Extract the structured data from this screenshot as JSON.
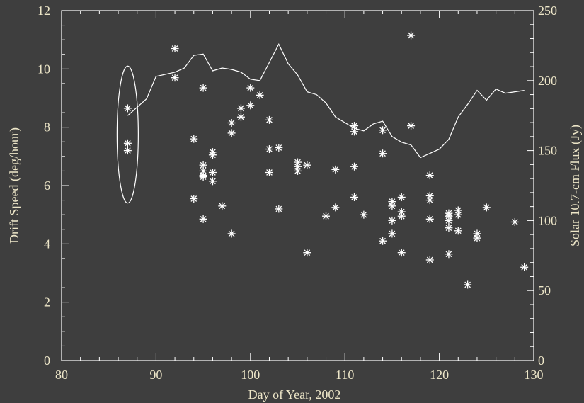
{
  "colors": {
    "background": "#3e3e3e",
    "axes": "#ffffff",
    "text": "#ede6c8",
    "marks": "#ffffff"
  },
  "chart_data": {
    "type": "scatter",
    "xlabel": "Day of Year, 2002",
    "ylabel": "Drift Speed (deg/hour)",
    "y2label": "Solar 10.7-cm Flux (Jy)",
    "xlim": [
      80,
      130
    ],
    "ylim": [
      0,
      12
    ],
    "y2lim": [
      0,
      250
    ],
    "xticks": [
      "80",
      "90",
      "100",
      "110",
      "120",
      "130"
    ],
    "yticks": [
      "0",
      "2",
      "4",
      "6",
      "8",
      "10",
      "12"
    ],
    "y2ticks": [
      "0",
      "50",
      "100",
      "150",
      "200",
      "250"
    ],
    "grid": false,
    "legend": "none",
    "annotation": "ellipse around day 87 points",
    "series": [
      {
        "axis": "left",
        "marker": "asterisk",
        "x": [
          87,
          87,
          87,
          92,
          92,
          94,
          94,
          95,
          95,
          95,
          95,
          95,
          95,
          96,
          96,
          96,
          96,
          97,
          98,
          98,
          98,
          99,
          99,
          100,
          100,
          101,
          102,
          102,
          102,
          103,
          103,
          105,
          105,
          105,
          106,
          106,
          108,
          109,
          109,
          111,
          111,
          111,
          111,
          112,
          114,
          114,
          114,
          115,
          115,
          115,
          115,
          116,
          116,
          116,
          116,
          117,
          117,
          119,
          119,
          119,
          119,
          119,
          121,
          121,
          121,
          121,
          121,
          122,
          122,
          122,
          123,
          124,
          124,
          125,
          128,
          129
        ],
        "y": [
          8.65,
          7.45,
          7.2,
          10.7,
          9.7,
          7.6,
          5.55,
          9.35,
          6.7,
          6.5,
          6.3,
          4.85,
          6.35,
          7.15,
          7.05,
          6.45,
          6.15,
          5.3,
          8.15,
          7.8,
          4.35,
          8.65,
          8.35,
          9.35,
          8.75,
          9.1,
          8.25,
          7.25,
          6.45,
          7.3,
          5.2,
          6.8,
          6.65,
          6.5,
          3.7,
          6.7,
          4.95,
          6.55,
          5.25,
          8.05,
          7.85,
          6.65,
          5.6,
          5.0,
          7.9,
          7.1,
          4.1,
          5.45,
          5.3,
          4.8,
          4.35,
          5.6,
          5.1,
          4.95,
          3.7,
          11.15,
          8.05,
          6.35,
          5.65,
          5.5,
          4.85,
          3.45,
          5.05,
          4.95,
          4.8,
          4.55,
          3.65,
          5.15,
          5.0,
          4.45,
          2.6,
          4.35,
          4.2,
          5.25,
          4.75,
          3.2
        ]
      },
      {
        "axis": "right",
        "type": "line",
        "x": [
          87,
          89,
          90,
          92,
          93,
          94,
          95,
          96,
          97,
          98,
          99,
          100,
          101,
          102,
          103,
          104,
          105,
          106,
          107,
          108,
          109,
          110,
          111,
          112,
          113,
          114,
          115,
          116,
          117,
          118,
          119,
          120,
          121,
          122,
          123,
          124,
          125,
          126,
          127,
          128,
          129
        ],
        "y": [
          175,
          187,
          203,
          206,
          209,
          218,
          219,
          207,
          209,
          208,
          206,
          201,
          200,
          213,
          226,
          212,
          204,
          192,
          190,
          184,
          174,
          170,
          166,
          164,
          169,
          171,
          160,
          156,
          154,
          145,
          148,
          151,
          158,
          174,
          183,
          193,
          186,
          194,
          191,
          192,
          193
        ]
      }
    ]
  }
}
